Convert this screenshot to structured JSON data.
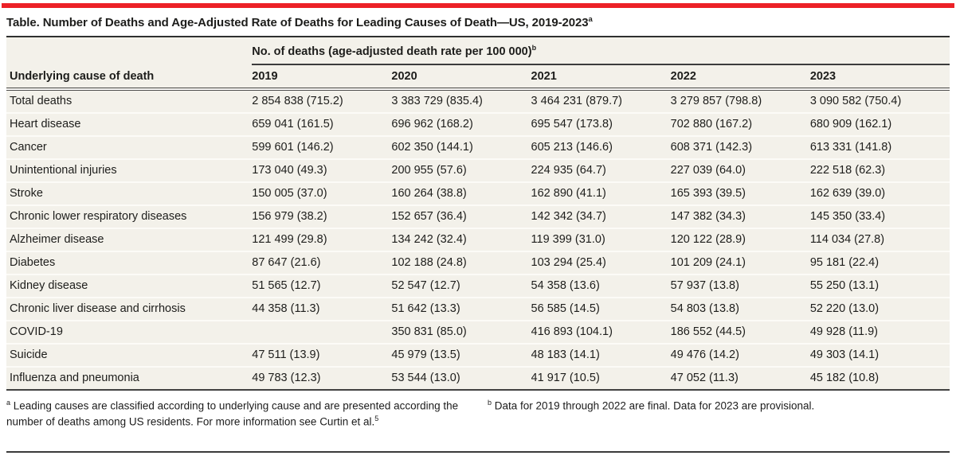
{
  "accent_color": "#ec2127",
  "background_color": "#f3f1ea",
  "title": {
    "text": "Table. Number of Deaths and Age-Adjusted Rate of Deaths for Leading Causes of Death—US, 2019-2023",
    "superscript": "a"
  },
  "table": {
    "span_header": {
      "text": "No. of deaths (age-adjusted death rate per 100 000)",
      "superscript": "b"
    },
    "row_header_label": "Underlying cause of death",
    "year_columns": [
      "2019",
      "2020",
      "2021",
      "2022",
      "2023"
    ],
    "rows": [
      {
        "cause": "Total deaths",
        "values": [
          "2 854 838 (715.2)",
          "3 383 729 (835.4)",
          "3 464 231 (879.7)",
          "3 279 857 (798.8)",
          "3 090 582 (750.4)"
        ]
      },
      {
        "cause": "Heart disease",
        "values": [
          "659 041 (161.5)",
          "696 962 (168.2)",
          "695 547 (173.8)",
          "702 880 (167.2)",
          "680 909 (162.1)"
        ]
      },
      {
        "cause": "Cancer",
        "values": [
          "599 601 (146.2)",
          "602 350 (144.1)",
          "605 213 (146.6)",
          "608 371 (142.3)",
          "613 331 (141.8)"
        ]
      },
      {
        "cause": "Unintentional injuries",
        "values": [
          "173 040 (49.3)",
          "200 955 (57.6)",
          "224 935 (64.7)",
          "227 039 (64.0)",
          "222 518 (62.3)"
        ]
      },
      {
        "cause": "Stroke",
        "values": [
          "150 005 (37.0)",
          "160 264 (38.8)",
          "162 890 (41.1)",
          "165 393 (39.5)",
          "162 639 (39.0)"
        ]
      },
      {
        "cause": "Chronic lower respiratory diseases",
        "values": [
          "156 979 (38.2)",
          "152 657 (36.4)",
          "142 342 (34.7)",
          "147 382 (34.3)",
          "145 350 (33.4)"
        ]
      },
      {
        "cause": "Alzheimer disease",
        "values": [
          "121 499 (29.8)",
          "134 242 (32.4)",
          "119 399 (31.0)",
          "120 122 (28.9)",
          "114 034 (27.8)"
        ]
      },
      {
        "cause": "Diabetes",
        "values": [
          "87 647 (21.6)",
          "102 188 (24.8)",
          "103 294 (25.4)",
          "101 209 (24.1)",
          "95 181 (22.4)"
        ]
      },
      {
        "cause": "Kidney disease",
        "values": [
          "51 565 (12.7)",
          "52 547 (12.7)",
          "54 358 (13.6)",
          "57 937 (13.8)",
          "55 250 (13.1)"
        ]
      },
      {
        "cause": "Chronic liver disease and cirrhosis",
        "values": [
          "44 358 (11.3)",
          "51 642 (13.3)",
          "56 585 (14.5)",
          "54 803 (13.8)",
          "52 220 (13.0)"
        ]
      },
      {
        "cause": "COVID-19",
        "values": [
          "",
          "350 831 (85.0)",
          "416 893 (104.1)",
          "186 552 (44.5)",
          "49 928 (11.9)"
        ]
      },
      {
        "cause": "Suicide",
        "values": [
          "47 511 (13.9)",
          "45 979 (13.5)",
          "48 183 (14.1)",
          "49 476 (14.2)",
          "49 303 (14.1)"
        ]
      },
      {
        "cause": "Influenza and pneumonia",
        "values": [
          "49 783 (12.3)",
          "53 544 (13.0)",
          "41 917 (10.5)",
          "47 052 (11.3)",
          "45 182 (10.8)"
        ]
      }
    ]
  },
  "footnotes": {
    "a": {
      "marker": "a",
      "text": "Leading causes are classified according to underlying cause and are presented according the number of deaths among US residents. For more information see Curtin et al.",
      "ref_superscript": "5"
    },
    "b": {
      "marker": "b",
      "text": "Data for 2019 through 2022 are final. Data for 2023 are provisional."
    }
  }
}
